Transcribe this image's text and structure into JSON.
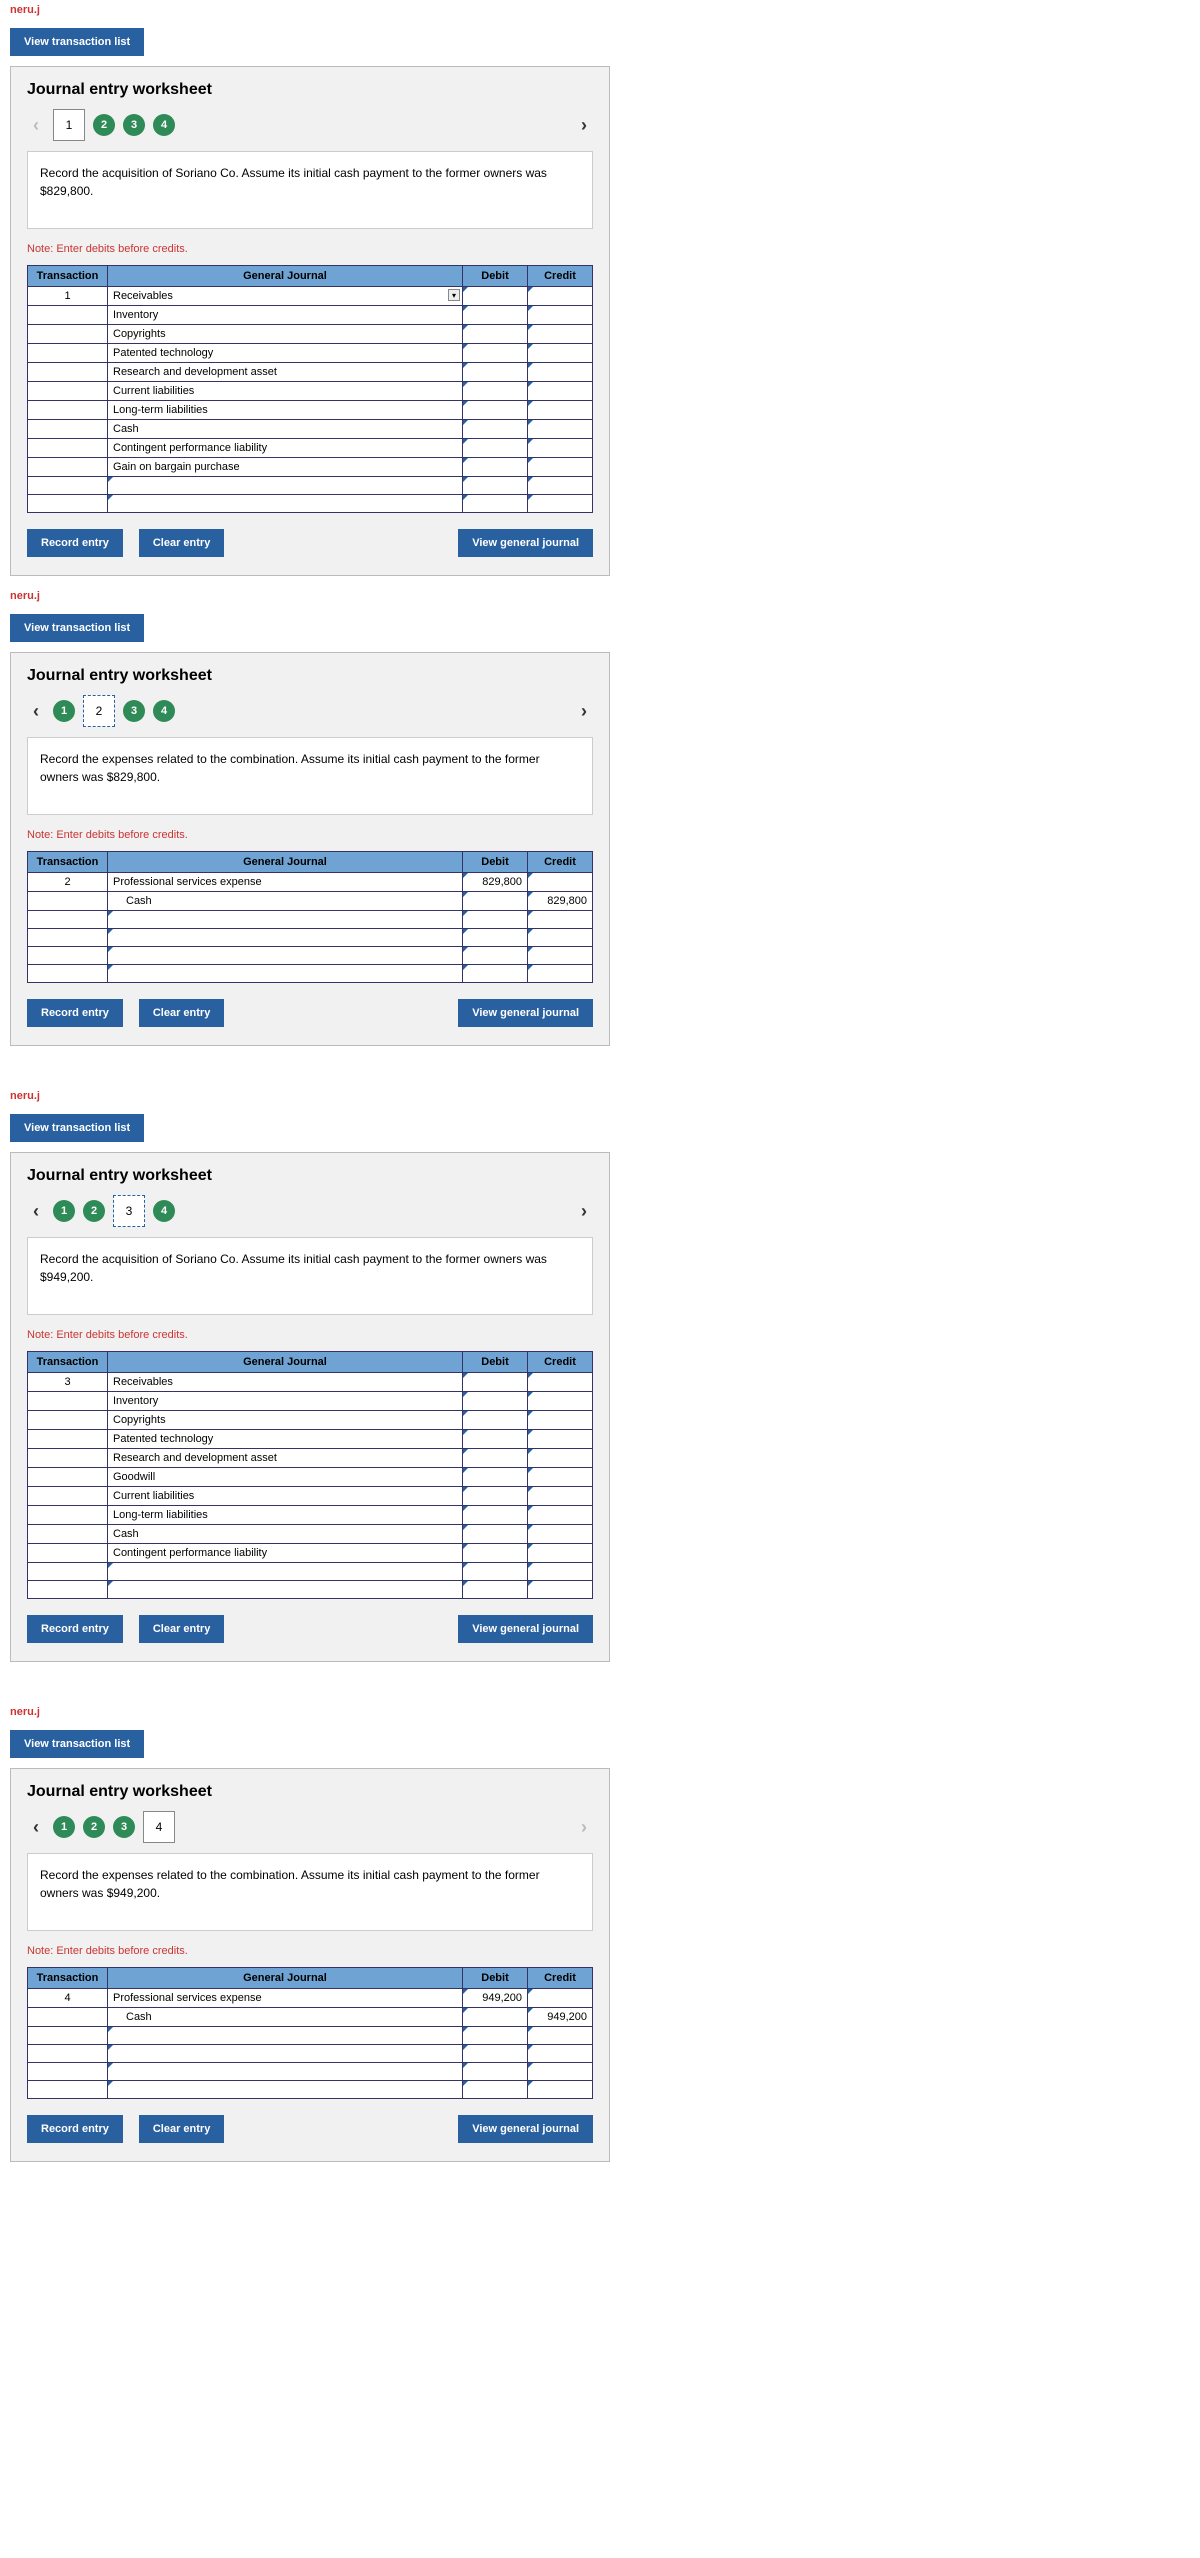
{
  "field_label": "neru.j",
  "view_transaction_list": "View transaction list",
  "ws_title": "Journal entry worksheet",
  "note": "Note: Enter debits before credits.",
  "headers": {
    "transaction": "Transaction",
    "general_journal": "General Journal",
    "debit": "Debit",
    "credit": "Credit"
  },
  "buttons": {
    "record": "Record entry",
    "clear": "Clear entry",
    "view_gj": "View general journal"
  },
  "steps": [
    "1",
    "2",
    "3",
    "4"
  ],
  "panels": [
    {
      "active_step": 1,
      "prev_dim": true,
      "next_dim": false,
      "instruction": "Record the acquisition of Soriano Co. Assume its initial cash payment to the former owners was $829,800.",
      "tx_no": "1",
      "step_style": "solid",
      "rows": [
        {
          "acct": "Receivables",
          "dd": true,
          "indent": false,
          "debit": "",
          "credit": ""
        },
        {
          "acct": "Inventory",
          "indent": false,
          "debit": "",
          "credit": ""
        },
        {
          "acct": "Copyrights",
          "indent": false,
          "debit": "",
          "credit": ""
        },
        {
          "acct": "Patented technology",
          "indent": false,
          "debit": "",
          "credit": ""
        },
        {
          "acct": "Research and development asset",
          "indent": false,
          "debit": "",
          "credit": ""
        },
        {
          "acct": "Current liabilities",
          "indent": false,
          "debit": "",
          "credit": ""
        },
        {
          "acct": "Long-term liabilities",
          "indent": false,
          "debit": "",
          "credit": ""
        },
        {
          "acct": "Cash",
          "indent": false,
          "debit": "",
          "credit": ""
        },
        {
          "acct": "Contingent performance liability",
          "indent": false,
          "debit": "",
          "credit": ""
        },
        {
          "acct": "Gain on bargain purchase",
          "indent": false,
          "debit": "",
          "credit": ""
        },
        {
          "acct": "",
          "debit": "",
          "credit": ""
        },
        {
          "acct": "",
          "debit": "",
          "credit": ""
        }
      ]
    },
    {
      "active_step": 2,
      "prev_dim": false,
      "next_dim": false,
      "instruction": "Record the expenses related to the combination. Assume its initial cash payment to the former owners was $829,800.",
      "tx_no": "2",
      "step_style": "dashed",
      "rows": [
        {
          "acct": "Professional services expense",
          "indent": false,
          "debit": "829,800",
          "credit": ""
        },
        {
          "acct": "Cash",
          "indent": true,
          "debit": "",
          "credit": "829,800"
        },
        {
          "acct": "",
          "debit": "",
          "credit": ""
        },
        {
          "acct": "",
          "debit": "",
          "credit": ""
        },
        {
          "acct": "",
          "debit": "",
          "credit": ""
        },
        {
          "acct": "",
          "debit": "",
          "credit": ""
        }
      ]
    },
    {
      "active_step": 3,
      "prev_dim": false,
      "next_dim": false,
      "instruction": "Record the acquisition of Soriano Co. Assume its initial cash payment to the former owners was $949,200.",
      "tx_no": "3",
      "step_style": "dashed",
      "rows": [
        {
          "acct": "Receivables",
          "indent": false,
          "debit": "",
          "credit": ""
        },
        {
          "acct": "Inventory",
          "indent": false,
          "debit": "",
          "credit": ""
        },
        {
          "acct": "Copyrights",
          "indent": false,
          "debit": "",
          "credit": ""
        },
        {
          "acct": "Patented technology",
          "indent": false,
          "debit": "",
          "credit": ""
        },
        {
          "acct": "Research and development asset",
          "indent": false,
          "debit": "",
          "credit": ""
        },
        {
          "acct": "Goodwill",
          "indent": false,
          "debit": "",
          "credit": ""
        },
        {
          "acct": "Current liabilities",
          "indent": false,
          "debit": "",
          "credit": ""
        },
        {
          "acct": "Long-term liabilities",
          "indent": false,
          "debit": "",
          "credit": ""
        },
        {
          "acct": "Cash",
          "indent": false,
          "debit": "",
          "credit": ""
        },
        {
          "acct": "Contingent performance liability",
          "indent": false,
          "debit": "",
          "credit": ""
        },
        {
          "acct": "",
          "debit": "",
          "credit": ""
        },
        {
          "acct": "",
          "debit": "",
          "credit": ""
        }
      ]
    },
    {
      "active_step": 4,
      "prev_dim": false,
      "next_dim": true,
      "instruction": "Record the expenses related to the combination. Assume its initial cash payment to the former owners was $949,200.",
      "tx_no": "4",
      "step_style": "solid",
      "rows": [
        {
          "acct": "Professional services expense",
          "indent": false,
          "debit": "949,200",
          "credit": ""
        },
        {
          "acct": "Cash",
          "indent": true,
          "debit": "",
          "credit": "949,200"
        },
        {
          "acct": "",
          "debit": "",
          "credit": ""
        },
        {
          "acct": "",
          "debit": "",
          "credit": ""
        },
        {
          "acct": "",
          "debit": "",
          "credit": ""
        },
        {
          "acct": "",
          "debit": "",
          "credit": ""
        }
      ]
    }
  ]
}
